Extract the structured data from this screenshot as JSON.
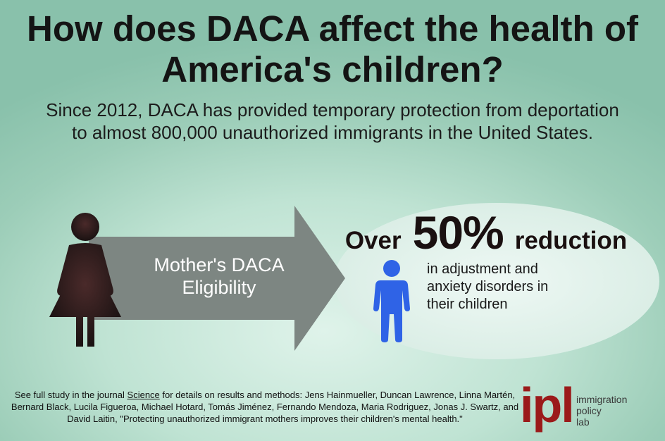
{
  "title": "How does DACA affect the health of America's children?",
  "subtitle": "Since 2012, DACA has provided temporary protection from deportation to almost 800,000 unauthorized immigrants in the United States.",
  "arrow": {
    "line1": "Mother's DACA",
    "line2": "Eligibility"
  },
  "stat": {
    "prefix": "Over",
    "value": "50%",
    "suffix": "reduction",
    "description": "in adjustment and anxiety disorders in their children"
  },
  "icons": {
    "mother": "woman-icon",
    "child": "child-icon",
    "arrow": "arrow-icon"
  },
  "colors": {
    "arrow": "#7d8682",
    "child": "#2f63e6",
    "mother": "#2a1c1c",
    "logo": "#9b1a1a"
  },
  "footnote": {
    "before": "See full study in the journal ",
    "journal": "Science",
    "after": " for details on results and methods: Jens Hainmueller, Duncan Lawrence, Linna Martén, Bernard Black, Lucila Figueroa, Michael Hotard, Tomás Jiménez, Fernando Mendoza, Maria Rodriguez, Jonas J. Swartz, and David Laitin, \"Protecting unauthorized immigrant mothers improves their children's mental health.\""
  },
  "logo": {
    "mark": "ipl",
    "line1": "immigration",
    "line2": "policy",
    "line3": "lab"
  }
}
